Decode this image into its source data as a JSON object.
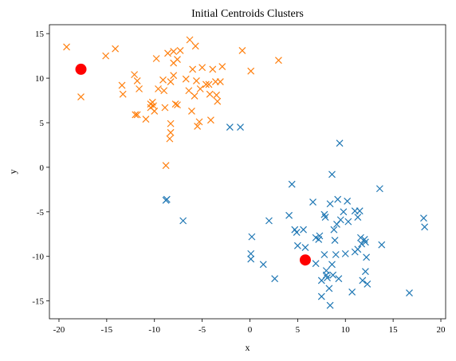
{
  "chart_data": {
    "type": "scatter",
    "title": "Initial Centroids Clusters",
    "xlabel": "x",
    "ylabel": "y",
    "xlim": [
      -21,
      20.5
    ],
    "ylim": [
      -17,
      16
    ],
    "xticks": [
      -20,
      -15,
      -10,
      -5,
      0,
      5,
      10,
      15,
      20
    ],
    "yticks": [
      -15,
      -10,
      -5,
      0,
      5,
      10,
      15
    ],
    "grid": false,
    "legend": "none",
    "series": [
      {
        "marker": "x",
        "color": "#ff7f0e",
        "points": [
          [
            -19.2,
            13.5
          ],
          [
            -17.7,
            7.9
          ],
          [
            -15.1,
            12.5
          ],
          [
            -14.1,
            13.3
          ],
          [
            -13.4,
            9.2
          ],
          [
            -13.3,
            8.2
          ],
          [
            -12.1,
            10.4
          ],
          [
            -11.8,
            9.7
          ],
          [
            -11.6,
            8.8
          ],
          [
            -12.0,
            5.9
          ],
          [
            -11.8,
            5.9
          ],
          [
            -10.9,
            5.4
          ],
          [
            -10.4,
            7.1
          ],
          [
            -10.4,
            6.7
          ],
          [
            -10.2,
            7.3
          ],
          [
            -10.1,
            6.9
          ],
          [
            -10.0,
            6.3
          ],
          [
            -9.8,
            12.2
          ],
          [
            -9.6,
            8.8
          ],
          [
            -9.1,
            9.8
          ],
          [
            -9.0,
            8.6
          ],
          [
            -8.9,
            6.7
          ],
          [
            -8.6,
            12.8
          ],
          [
            -8.3,
            9.6
          ],
          [
            -8.3,
            4.9
          ],
          [
            -8.3,
            3.9
          ],
          [
            -8.4,
            3.2
          ],
          [
            -8.0,
            10.3
          ],
          [
            -8.0,
            11.7
          ],
          [
            -7.8,
            7.1
          ],
          [
            -7.6,
            7.0
          ],
          [
            -7.6,
            12.1
          ],
          [
            -7.3,
            13.1
          ],
          [
            -8.8,
            0.2
          ],
          [
            -6.7,
            9.9
          ],
          [
            -6.4,
            8.6
          ],
          [
            -6.3,
            14.3
          ],
          [
            -6.1,
            6.3
          ],
          [
            -6.0,
            11.0
          ],
          [
            -5.8,
            8.0
          ],
          [
            -5.7,
            13.6
          ],
          [
            -5.6,
            9.7
          ],
          [
            -5.5,
            4.6
          ],
          [
            -5.3,
            5.1
          ],
          [
            -5.2,
            8.8
          ],
          [
            -5.0,
            11.2
          ],
          [
            -4.6,
            9.3
          ],
          [
            -4.3,
            9.3
          ],
          [
            -4.2,
            8.2
          ],
          [
            -4.1,
            5.3
          ],
          [
            -3.9,
            11.0
          ],
          [
            -3.6,
            9.6
          ],
          [
            -3.5,
            8.1
          ],
          [
            -3.4,
            7.4
          ],
          [
            -3.1,
            9.6
          ],
          [
            -2.9,
            11.3
          ],
          [
            -0.8,
            13.1
          ],
          [
            0.1,
            10.8
          ],
          [
            3.0,
            12.0
          ],
          [
            -8.0,
            13.0
          ]
        ]
      },
      {
        "marker": "x",
        "color": "#1f77b4",
        "points": [
          [
            -2.1,
            4.5
          ],
          [
            -1.0,
            4.5
          ],
          [
            -8.8,
            -3.7
          ],
          [
            -8.7,
            -3.6
          ],
          [
            -7.0,
            -6.0
          ],
          [
            0.2,
            -7.8
          ],
          [
            0.1,
            -9.7
          ],
          [
            0.1,
            -10.3
          ],
          [
            1.4,
            -10.9
          ],
          [
            2.0,
            -6.0
          ],
          [
            2.6,
            -12.5
          ],
          [
            4.1,
            -5.4
          ],
          [
            4.4,
            -1.9
          ],
          [
            4.7,
            -7.0
          ],
          [
            4.9,
            -7.3
          ],
          [
            5.0,
            -8.8
          ],
          [
            5.6,
            -7.0
          ],
          [
            5.8,
            -9.0
          ],
          [
            6.6,
            -3.9
          ],
          [
            6.9,
            -7.9
          ],
          [
            6.9,
            -10.8
          ],
          [
            7.2,
            -8.1
          ],
          [
            7.3,
            -7.7
          ],
          [
            7.5,
            -12.7
          ],
          [
            7.5,
            -14.5
          ],
          [
            7.8,
            -9.8
          ],
          [
            7.8,
            -5.3
          ],
          [
            7.9,
            -5.6
          ],
          [
            8.0,
            -12.1
          ],
          [
            8.1,
            -12.4
          ],
          [
            8.0,
            -11.6
          ],
          [
            8.3,
            -13.6
          ],
          [
            8.4,
            -15.5
          ],
          [
            8.4,
            -4.1
          ],
          [
            8.6,
            -0.8
          ],
          [
            8.6,
            -10.9
          ],
          [
            8.7,
            -12.1
          ],
          [
            8.8,
            -7.0
          ],
          [
            8.9,
            -8.2
          ],
          [
            9.0,
            -9.8
          ],
          [
            9.1,
            -6.4
          ],
          [
            9.2,
            -3.6
          ],
          [
            9.3,
            -12.5
          ],
          [
            9.5,
            -5.9
          ],
          [
            9.4,
            2.7
          ],
          [
            9.8,
            -5.0
          ],
          [
            10.0,
            -9.7
          ],
          [
            10.2,
            -3.8
          ],
          [
            10.3,
            -6.1
          ],
          [
            10.7,
            -14.0
          ],
          [
            11.0,
            -4.9
          ],
          [
            11.3,
            -5.6
          ],
          [
            11.5,
            -4.9
          ],
          [
            11.6,
            -7.9
          ],
          [
            11.7,
            -8.6
          ],
          [
            12.0,
            -8.1
          ],
          [
            12.1,
            -8.4
          ],
          [
            11.8,
            -12.7
          ],
          [
            12.1,
            -11.7
          ],
          [
            12.2,
            -10.1
          ],
          [
            12.3,
            -13.1
          ],
          [
            11.3,
            -9.2
          ],
          [
            11.0,
            -9.5
          ],
          [
            13.6,
            -2.4
          ],
          [
            13.8,
            -8.7
          ],
          [
            16.7,
            -14.1
          ],
          [
            18.2,
            -5.7
          ],
          [
            18.3,
            -6.7
          ]
        ]
      }
    ],
    "centroids": {
      "color": "#ff0000",
      "marker": "circle",
      "points": [
        [
          -17.7,
          11.0
        ],
        [
          5.8,
          -10.4
        ]
      ]
    }
  }
}
